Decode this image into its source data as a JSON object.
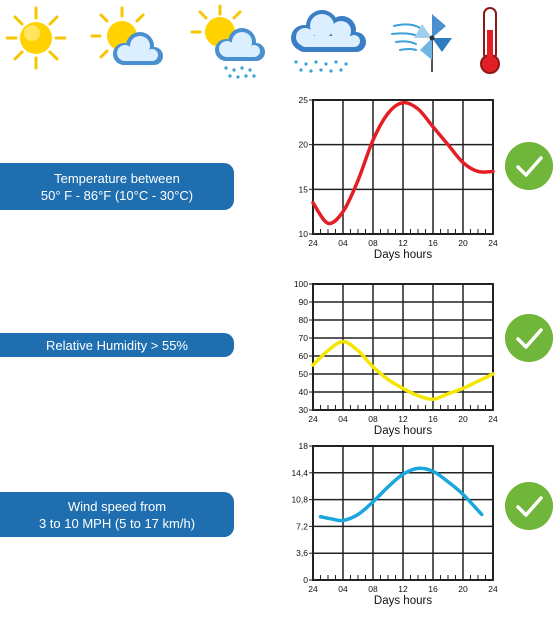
{
  "icons": [
    {
      "name": "sun-icon"
    },
    {
      "name": "partly-cloudy-icon"
    },
    {
      "name": "sun-rain-cloud-icon"
    },
    {
      "name": "rain-cloud-icon"
    },
    {
      "name": "wind-pinwheel-icon"
    },
    {
      "name": "thermometer-icon"
    }
  ],
  "conditions": [
    {
      "line1": "Temperature between",
      "line2": "50° F - 86°F (10°C - 30°C)"
    },
    {
      "line1": "Relative Humidity > 55%",
      "line2": ""
    },
    {
      "line1": "Wind speed from",
      "line2": "3 to 10 MPH (5 to 17 km/h)"
    }
  ],
  "colors": {
    "label_bg": "#1f6fb0",
    "check_bg": "#6fb63a",
    "temperature_line": "#e41e25",
    "humidity_line": "#f5e600",
    "wind_line": "#1aa6de"
  },
  "chart_data": [
    {
      "type": "line",
      "xlabel": "Days hours",
      "x_ticks": [
        "24",
        "04",
        "08",
        "12",
        "16",
        "20",
        "24"
      ],
      "y_ticks": [
        "10",
        "15",
        "20",
        "25"
      ],
      "ylim": [
        10,
        25
      ],
      "grid": true,
      "x": [
        0,
        2,
        4,
        6,
        8,
        10,
        12,
        14,
        16,
        18,
        20,
        22,
        24
      ],
      "series": [
        {
          "values": [
            13.5,
            11.2,
            12.5,
            16,
            20.5,
            23.5,
            24.7,
            24,
            22,
            20,
            18,
            17,
            17
          ]
        }
      ]
    },
    {
      "type": "line",
      "xlabel": "Days hours",
      "x_ticks": [
        "24",
        "04",
        "08",
        "12",
        "16",
        "20",
        "24"
      ],
      "y_ticks": [
        "30",
        "40",
        "50",
        "60",
        "70",
        "80",
        "90",
        "100"
      ],
      "ylim": [
        30,
        100
      ],
      "grid": true,
      "x": [
        0,
        2,
        4,
        6,
        8,
        10,
        12,
        14,
        16,
        18,
        20,
        22,
        24
      ],
      "series": [
        {
          "values": [
            55,
            63,
            68,
            63,
            54,
            47,
            42,
            38,
            36,
            39,
            42,
            46,
            50
          ]
        }
      ]
    },
    {
      "type": "line",
      "xlabel": "Days hours",
      "x_ticks": [
        "24",
        "04",
        "08",
        "12",
        "16",
        "20",
        "24"
      ],
      "y_ticks": [
        "0",
        "3,6",
        "7,2",
        "10,8",
        "14,4",
        "18"
      ],
      "ylim": [
        0,
        18
      ],
      "grid": true,
      "x": [
        1,
        2.5,
        4,
        6,
        8,
        10,
        12,
        14,
        16,
        18,
        20,
        22.5
      ],
      "series": [
        {
          "values": [
            8.5,
            8.2,
            8.0,
            8.8,
            10.5,
            12.5,
            14.2,
            15,
            14.6,
            13.2,
            11.5,
            8.8
          ]
        }
      ]
    }
  ]
}
